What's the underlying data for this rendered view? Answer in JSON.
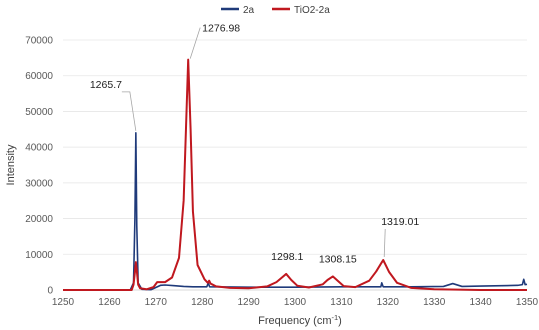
{
  "chart_data": {
    "type": "line",
    "xlabel": "Frequency (cm",
    "xlabel_sup": "-1",
    "xlabel_end": ")",
    "ylabel": "Intensity",
    "xlim": [
      1250,
      1350
    ],
    "ylim": [
      0,
      70000
    ],
    "xticks": [
      1250,
      1260,
      1270,
      1280,
      1290,
      1300,
      1310,
      1320,
      1330,
      1340,
      1350
    ],
    "yticks": [
      0,
      10000,
      20000,
      30000,
      40000,
      50000,
      60000,
      70000
    ],
    "legend_position": "top-center",
    "grid": true,
    "series": [
      {
        "name": "2a",
        "color": "#1f3a7a",
        "x": [
          1250,
          1264.5,
          1265.2,
          1265.5,
          1265.7,
          1265.9,
          1266.2,
          1267,
          1269,
          1270,
          1271,
          1272,
          1274,
          1276,
          1278,
          1281,
          1281.3,
          1281.6,
          1285,
          1290,
          1300,
          1310,
          1318.5,
          1318.7,
          1319,
          1325,
          1332,
          1334,
          1336,
          1340,
          1348,
          1349,
          1349.3,
          1349.6,
          1350
        ],
        "y": [
          0,
          0,
          2000,
          20000,
          44000,
          18000,
          2000,
          200,
          100,
          700,
          1300,
          1400,
          1200,
          1000,
          900,
          900,
          2000,
          900,
          850,
          800,
          800,
          900,
          900,
          2000,
          900,
          900,
          1000,
          1800,
          1000,
          1100,
          1300,
          1500,
          3000,
          1500,
          1600
        ]
      },
      {
        "name": "TiO2-2a",
        "color": "#c0181f",
        "x": [
          1250,
          1264.8,
          1265.2,
          1265.5,
          1265.7,
          1265.9,
          1266.2,
          1266.6,
          1268,
          1269.5,
          1270.3,
          1272,
          1273.5,
          1275,
          1276,
          1276.5,
          1276.98,
          1277.5,
          1278,
          1279,
          1280.5,
          1281.2,
          1281.5,
          1281.8,
          1283,
          1286,
          1290,
          1294,
          1296,
          1297,
          1298.1,
          1299.2,
          1300.5,
          1303,
          1306,
          1307,
          1308.15,
          1309.2,
          1310.5,
          1313,
          1316,
          1317.5,
          1319.01,
          1320.3,
          1322,
          1325,
          1330,
          1340,
          1350
        ],
        "y": [
          0,
          0,
          1500,
          5000,
          7800,
          5500,
          1500,
          500,
          200,
          800,
          2200,
          2200,
          3500,
          9000,
          25000,
          45000,
          64500,
          45000,
          22000,
          7000,
          3000,
          2000,
          2600,
          1800,
          1000,
          600,
          500,
          1000,
          2200,
          3300,
          4500,
          2800,
          1200,
          700,
          1600,
          2800,
          3800,
          2600,
          1100,
          800,
          2600,
          5200,
          8400,
          5000,
          2000,
          600,
          200,
          0,
          0
        ]
      }
    ],
    "annotations": [
      {
        "label": "1265.7",
        "x": 1265.7,
        "y": 44000
      },
      {
        "label": "1276.98",
        "x": 1276.98,
        "y": 64500
      },
      {
        "label": "1298.1",
        "x": 1298.1,
        "y": 4500
      },
      {
        "label": "1308.15",
        "x": 1308.15,
        "y": 3800
      },
      {
        "label": "1319.01",
        "x": 1319.01,
        "y": 8400
      }
    ]
  }
}
